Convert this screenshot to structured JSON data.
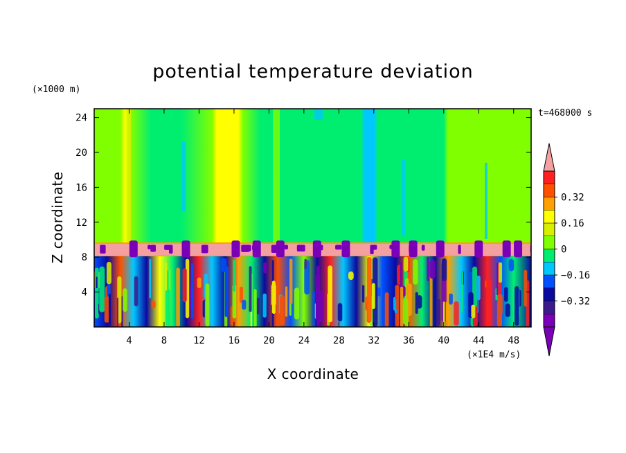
{
  "chart_data": {
    "type": "heatmap",
    "title": "potential temperature deviation",
    "xlabel": "X coordinate",
    "ylabel": "Z coordinate",
    "x_unit": "(×1E4 m/s)",
    "y_unit": "(×1000 m)",
    "time_label": "t=468000 s",
    "xlim": [
      0,
      50
    ],
    "ylim": [
      0,
      25
    ],
    "x_ticks": [
      4,
      8,
      12,
      16,
      20,
      24,
      28,
      32,
      36,
      40,
      44,
      48
    ],
    "y_ticks": [
      4,
      8,
      12,
      16,
      20,
      24
    ],
    "colorbar": {
      "levels": [
        -0.48,
        -0.4,
        -0.32,
        -0.24,
        -0.16,
        -0.08,
        0,
        0.08,
        0.16,
        0.24,
        0.32,
        0.4,
        0.48
      ],
      "colors": [
        "#7a00b8",
        "#3c1a8c",
        "#0a0aa0",
        "#0050ff",
        "#00c8ff",
        "#00ee70",
        "#80ff00",
        "#d8f000",
        "#ffff00",
        "#ffa000",
        "#ff5000",
        "#ff2020",
        "#f5a0a0"
      ],
      "tick_values": [
        0.32,
        0.16,
        0,
        -0.16,
        -0.32
      ],
      "tick_labels": [
        "0.32",
        "0.16",
        "0",
        "−0.16",
        "−0.32"
      ],
      "extend": "both"
    },
    "regions": [
      {
        "z_range": [
          9.6,
          25
        ],
        "description_level": "near 0 (mostly 0 to 0.08 with bands from -0.16 to 0.16)"
      },
      {
        "z_range": [
          8.1,
          9.6
        ],
        "description_level": "above 0.48"
      },
      {
        "z_range": [
          0,
          8.1
        ],
        "description_level": "turbulent mix from below -0.48 to above 0.48"
      }
    ]
  }
}
